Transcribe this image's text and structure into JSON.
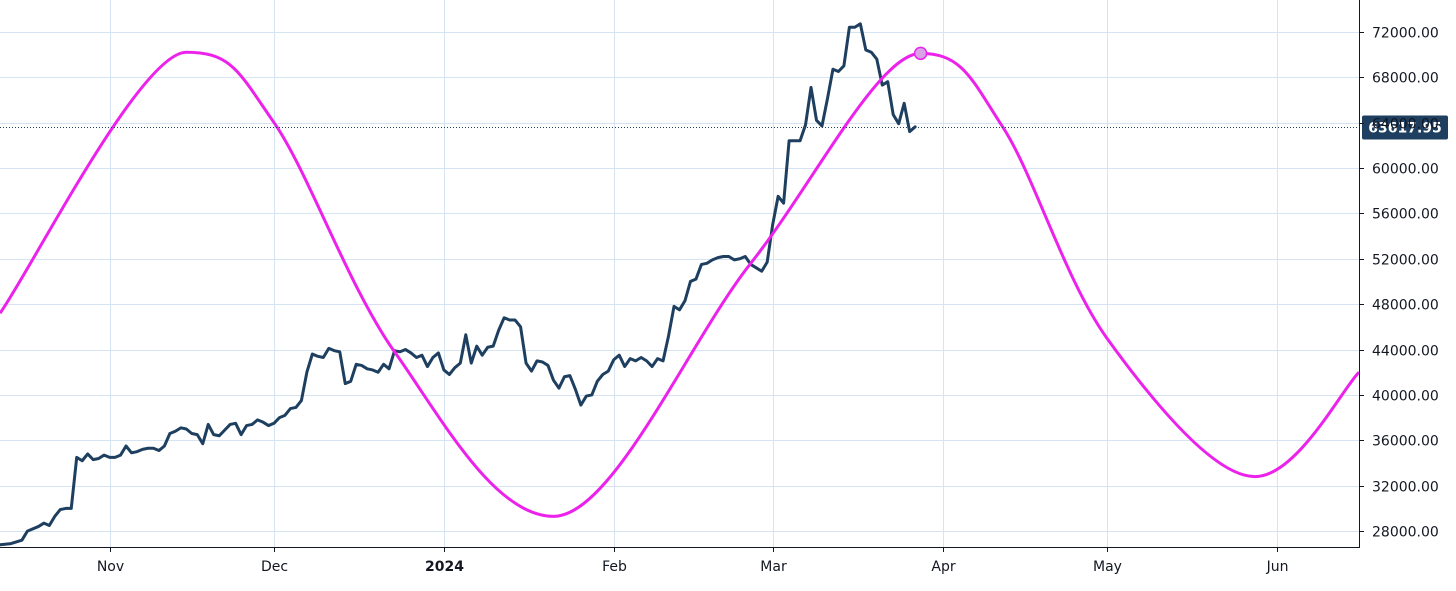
{
  "chart_data": {
    "type": "line",
    "x_axis": {
      "type": "date",
      "range": [
        "2023-10-12",
        "2024-06-16"
      ],
      "tick_labels": [
        {
          "date": "2023-11-01",
          "label": "Nov"
        },
        {
          "date": "2023-12-01",
          "label": "Dec"
        },
        {
          "date": "2024-01-01",
          "label": "2024",
          "bold": true
        },
        {
          "date": "2024-02-01",
          "label": "Feb"
        },
        {
          "date": "2024-03-01",
          "label": "Mar"
        },
        {
          "date": "2024-04-01",
          "label": "Apr"
        },
        {
          "date": "2024-05-01",
          "label": "May"
        },
        {
          "date": "2024-06-01",
          "label": "Jun"
        }
      ]
    },
    "y_axis": {
      "side": "right",
      "range": [
        26600,
        74800
      ],
      "ticks": [
        28000,
        32000,
        36000,
        40000,
        44000,
        48000,
        52000,
        56000,
        60000,
        64000,
        68000,
        72000
      ],
      "tick_labels": [
        "28000.00",
        "32000.00",
        "36000.00",
        "40000.00",
        "44000.00",
        "48000.00",
        "52000.00",
        "56000.00",
        "60000.00",
        "64000.00",
        "68000.00",
        "72000.00"
      ]
    },
    "grid": true,
    "current_price": {
      "value": 63617.95,
      "label": "63617.95",
      "line_style": "dotted",
      "color": "#1e3f5f"
    },
    "series": [
      {
        "kind": "price",
        "color": "#1e3f5f",
        "points": [
          [
            "2023-10-12",
            26800
          ],
          [
            "2023-10-14",
            26900
          ],
          [
            "2023-10-16",
            27200
          ],
          [
            "2023-10-17",
            28000
          ],
          [
            "2023-10-19",
            28400
          ],
          [
            "2023-10-20",
            28700
          ],
          [
            "2023-10-21",
            28500
          ],
          [
            "2023-10-22",
            29300
          ],
          [
            "2023-10-23",
            29900
          ],
          [
            "2023-10-24",
            30000
          ],
          [
            "2023-10-25",
            30000
          ],
          [
            "2023-10-26",
            34500
          ],
          [
            "2023-10-27",
            34200
          ],
          [
            "2023-10-28",
            34800
          ],
          [
            "2023-10-29",
            34300
          ],
          [
            "2023-10-30",
            34400
          ],
          [
            "2023-10-31",
            34700
          ],
          [
            "2023-11-01",
            34500
          ],
          [
            "2023-11-02",
            34500
          ],
          [
            "2023-11-03",
            34700
          ],
          [
            "2023-11-04",
            35500
          ],
          [
            "2023-11-05",
            34900
          ],
          [
            "2023-11-06",
            35000
          ],
          [
            "2023-11-07",
            35200
          ],
          [
            "2023-11-08",
            35300
          ],
          [
            "2023-11-09",
            35300
          ],
          [
            "2023-11-10",
            35100
          ],
          [
            "2023-11-11",
            35500
          ],
          [
            "2023-11-12",
            36600
          ],
          [
            "2023-11-13",
            36800
          ],
          [
            "2023-11-14",
            37100
          ],
          [
            "2023-11-15",
            37000
          ],
          [
            "2023-11-16",
            36600
          ],
          [
            "2023-11-17",
            36500
          ],
          [
            "2023-11-18",
            35700
          ],
          [
            "2023-11-19",
            37400
          ],
          [
            "2023-11-20",
            36500
          ],
          [
            "2023-11-21",
            36400
          ],
          [
            "2023-11-22",
            36900
          ],
          [
            "2023-11-23",
            37400
          ],
          [
            "2023-11-24",
            37500
          ],
          [
            "2023-11-25",
            36500
          ],
          [
            "2023-11-26",
            37300
          ],
          [
            "2023-11-27",
            37400
          ],
          [
            "2023-11-28",
            37800
          ],
          [
            "2023-11-29",
            37600
          ],
          [
            "2023-11-30",
            37300
          ],
          [
            "2023-12-01",
            37500
          ],
          [
            "2023-12-02",
            38000
          ],
          [
            "2023-12-03",
            38200
          ],
          [
            "2023-12-04",
            38800
          ],
          [
            "2023-12-05",
            38900
          ],
          [
            "2023-12-06",
            39500
          ],
          [
            "2023-12-07",
            42000
          ],
          [
            "2023-12-08",
            43600
          ],
          [
            "2023-12-09",
            43400
          ],
          [
            "2023-12-10",
            43300
          ],
          [
            "2023-12-11",
            44100
          ],
          [
            "2023-12-12",
            43900
          ],
          [
            "2023-12-13",
            43800
          ],
          [
            "2023-12-14",
            41000
          ],
          [
            "2023-12-15",
            41200
          ],
          [
            "2023-12-16",
            42700
          ],
          [
            "2023-12-17",
            42600
          ],
          [
            "2023-12-18",
            42300
          ],
          [
            "2023-12-19",
            42200
          ],
          [
            "2023-12-20",
            42000
          ],
          [
            "2023-12-21",
            42700
          ],
          [
            "2023-12-22",
            42300
          ],
          [
            "2023-12-23",
            43900
          ],
          [
            "2023-12-24",
            43800
          ],
          [
            "2023-12-25",
            44000
          ],
          [
            "2023-12-26",
            43700
          ],
          [
            "2023-12-27",
            43300
          ],
          [
            "2023-12-28",
            43500
          ],
          [
            "2023-12-29",
            42500
          ],
          [
            "2023-12-30",
            43300
          ],
          [
            "2023-12-31",
            43700
          ],
          [
            "2024-01-01",
            42200
          ],
          [
            "2024-01-02",
            41800
          ],
          [
            "2024-01-03",
            42400
          ],
          [
            "2024-01-04",
            42800
          ],
          [
            "2024-01-05",
            45300
          ],
          [
            "2024-01-06",
            42800
          ],
          [
            "2024-01-07",
            44300
          ],
          [
            "2024-01-08",
            43500
          ],
          [
            "2024-01-09",
            44200
          ],
          [
            "2024-01-10",
            44300
          ],
          [
            "2024-01-11",
            45700
          ],
          [
            "2024-01-12",
            46800
          ],
          [
            "2024-01-13",
            46600
          ],
          [
            "2024-01-14",
            46600
          ],
          [
            "2024-01-15",
            46000
          ],
          [
            "2024-01-16",
            42800
          ],
          [
            "2024-01-17",
            42100
          ],
          [
            "2024-01-18",
            43000
          ],
          [
            "2024-01-19",
            42900
          ],
          [
            "2024-01-20",
            42600
          ],
          [
            "2024-01-21",
            41300
          ],
          [
            "2024-01-22",
            40600
          ],
          [
            "2024-01-23",
            41600
          ],
          [
            "2024-01-24",
            41700
          ],
          [
            "2024-01-25",
            40500
          ],
          [
            "2024-01-26",
            39100
          ],
          [
            "2024-01-27",
            39900
          ],
          [
            "2024-01-28",
            40000
          ],
          [
            "2024-01-29",
            41200
          ],
          [
            "2024-01-30",
            41800
          ],
          [
            "2024-01-31",
            42100
          ],
          [
            "2024-02-01",
            43100
          ],
          [
            "2024-02-02",
            43500
          ],
          [
            "2024-02-03",
            42500
          ],
          [
            "2024-02-04",
            43200
          ],
          [
            "2024-02-05",
            43000
          ],
          [
            "2024-02-06",
            43300
          ],
          [
            "2024-02-07",
            43000
          ],
          [
            "2024-02-08",
            42500
          ],
          [
            "2024-02-09",
            43200
          ],
          [
            "2024-02-10",
            43000
          ],
          [
            "2024-02-11",
            45200
          ],
          [
            "2024-02-12",
            47800
          ],
          [
            "2024-02-13",
            47500
          ],
          [
            "2024-02-14",
            48300
          ],
          [
            "2024-02-15",
            50000
          ],
          [
            "2024-02-16",
            50200
          ],
          [
            "2024-02-17",
            51500
          ],
          [
            "2024-02-18",
            51600
          ],
          [
            "2024-02-19",
            51900
          ],
          [
            "2024-02-20",
            52100
          ],
          [
            "2024-02-21",
            52200
          ],
          [
            "2024-02-22",
            52200
          ],
          [
            "2024-02-23",
            51900
          ],
          [
            "2024-02-24",
            52000
          ],
          [
            "2024-02-25",
            52200
          ],
          [
            "2024-02-26",
            51500
          ],
          [
            "2024-02-27",
            51200
          ],
          [
            "2024-02-28",
            50900
          ],
          [
            "2024-02-29",
            51700
          ],
          [
            "2024-03-01",
            55000
          ],
          [
            "2024-03-02",
            57500
          ],
          [
            "2024-03-03",
            56900
          ],
          [
            "2024-03-04",
            62400
          ],
          [
            "2024-03-05",
            62400
          ],
          [
            "2024-03-06",
            62400
          ],
          [
            "2024-03-07",
            63800
          ],
          [
            "2024-03-08",
            67100
          ],
          [
            "2024-03-09",
            64200
          ],
          [
            "2024-03-10",
            63700
          ],
          [
            "2024-03-11",
            66100
          ],
          [
            "2024-03-12",
            68700
          ],
          [
            "2024-03-13",
            68500
          ],
          [
            "2024-03-14",
            69000
          ],
          [
            "2024-03-15",
            72400
          ],
          [
            "2024-03-16",
            72400
          ],
          [
            "2024-03-17",
            72700
          ],
          [
            "2024-03-18",
            70400
          ],
          [
            "2024-03-19",
            70200
          ],
          [
            "2024-03-20",
            69600
          ],
          [
            "2024-03-21",
            67300
          ],
          [
            "2024-03-22",
            67600
          ],
          [
            "2024-03-23",
            64700
          ],
          [
            "2024-03-24",
            63900
          ],
          [
            "2024-03-25",
            65700
          ],
          [
            "2024-03-26",
            63200
          ],
          [
            "2024-03-27",
            63617.95
          ]
        ]
      },
      {
        "kind": "cycle",
        "color": "#ec22ec",
        "points": [
          [
            "2023-10-12",
            47200
          ],
          [
            "2023-11-15",
            70200
          ],
          [
            "2023-12-01",
            64000
          ],
          [
            "2023-12-23",
            43800
          ],
          [
            "2024-01-21",
            29300
          ],
          [
            "2024-02-26",
            51600
          ],
          [
            "2024-03-28",
            70100
          ],
          [
            "2024-04-12",
            63600
          ],
          [
            "2024-05-01",
            45000
          ],
          [
            "2024-05-28",
            32800
          ],
          [
            "2024-06-16",
            42000
          ]
        ],
        "marker": {
          "date": "2024-03-28",
          "value": 70100,
          "fill": "#d9a3e6"
        }
      }
    ]
  }
}
